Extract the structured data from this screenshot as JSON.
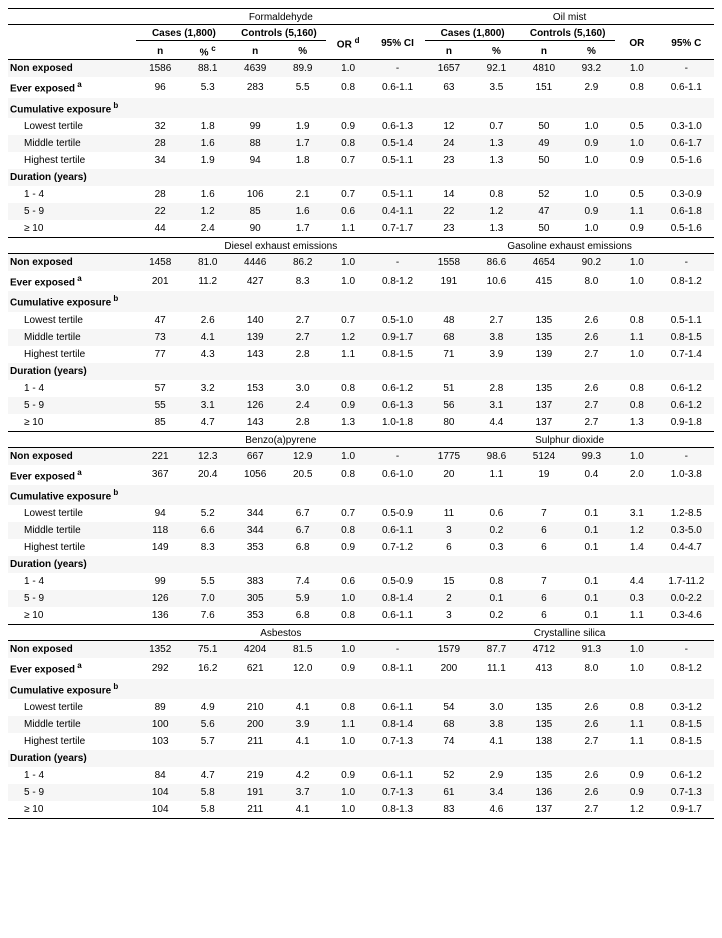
{
  "cases_label": "Cases (1,800)",
  "controls_label": "Controls (5,160)",
  "or_label": "OR",
  "or_d_label": "OR",
  "or_d_sup": "d",
  "ci_label": "95% CI",
  "ci_label_right": "95% C",
  "n_label": "n",
  "pct_label": "%",
  "pct_c_sup": "c",
  "row_labels": {
    "non_exposed": "Non exposed",
    "ever_exposed": "Ever exposed",
    "ever_exposed_sup": "a",
    "cum_exp": "Cumulative exposure",
    "cum_exp_sup": "b",
    "lowest": "Lowest tertile",
    "middle": "Middle tertile",
    "highest": "Highest tertile",
    "duration": "Duration (years)",
    "d1": "1 - 4",
    "d5": "5 - 9",
    "d10": "≥ 10"
  },
  "sections": [
    {
      "left_title": "Formaldehyde",
      "right_title": "Oil mist",
      "rows": {
        "non_exposed": {
          "l": {
            "cn": "1586",
            "cp": "88.1",
            "kn": "4639",
            "kp": "89.9",
            "or": "1.0",
            "ci": "-"
          },
          "r": {
            "cn": "1657",
            "cp": "92.1",
            "kn": "4810",
            "kp": "93.2",
            "or": "1.0",
            "ci": "-"
          }
        },
        "ever_exposed": {
          "l": {
            "cn": "96",
            "cp": "5.3",
            "kn": "283",
            "kp": "5.5",
            "or": "0.8",
            "ci": "0.6-1.1"
          },
          "r": {
            "cn": "63",
            "cp": "3.5",
            "kn": "151",
            "kp": "2.9",
            "or": "0.8",
            "ci": "0.6-1.1"
          }
        },
        "lowest": {
          "l": {
            "cn": "32",
            "cp": "1.8",
            "kn": "99",
            "kp": "1.9",
            "or": "0.9",
            "ci": "0.6-1.3"
          },
          "r": {
            "cn": "12",
            "cp": "0.7",
            "kn": "50",
            "kp": "1.0",
            "or": "0.5",
            "ci": "0.3-1.0"
          }
        },
        "middle": {
          "l": {
            "cn": "28",
            "cp": "1.6",
            "kn": "88",
            "kp": "1.7",
            "or": "0.8",
            "ci": "0.5-1.4"
          },
          "r": {
            "cn": "24",
            "cp": "1.3",
            "kn": "49",
            "kp": "0.9",
            "or": "1.0",
            "ci": "0.6-1.7"
          }
        },
        "highest": {
          "l": {
            "cn": "34",
            "cp": "1.9",
            "kn": "94",
            "kp": "1.8",
            "or": "0.7",
            "ci": "0.5-1.1"
          },
          "r": {
            "cn": "23",
            "cp": "1.3",
            "kn": "50",
            "kp": "1.0",
            "or": "0.9",
            "ci": "0.5-1.6"
          }
        },
        "d1": {
          "l": {
            "cn": "28",
            "cp": "1.6",
            "kn": "106",
            "kp": "2.1",
            "or": "0.7",
            "ci": "0.5-1.1"
          },
          "r": {
            "cn": "14",
            "cp": "0.8",
            "kn": "52",
            "kp": "1.0",
            "or": "0.5",
            "ci": "0.3-0.9"
          }
        },
        "d5": {
          "l": {
            "cn": "22",
            "cp": "1.2",
            "kn": "85",
            "kp": "1.6",
            "or": "0.6",
            "ci": "0.4-1.1"
          },
          "r": {
            "cn": "22",
            "cp": "1.2",
            "kn": "47",
            "kp": "0.9",
            "or": "1.1",
            "ci": "0.6-1.8"
          }
        },
        "d10": {
          "l": {
            "cn": "44",
            "cp": "2.4",
            "kn": "90",
            "kp": "1.7",
            "or": "1.1",
            "ci": "0.7-1.7"
          },
          "r": {
            "cn": "23",
            "cp": "1.3",
            "kn": "50",
            "kp": "1.0",
            "or": "0.9",
            "ci": "0.5-1.6"
          }
        }
      }
    },
    {
      "left_title": "Diesel exhaust emissions",
      "right_title": "Gasoline exhaust emissions",
      "rows": {
        "non_exposed": {
          "l": {
            "cn": "1458",
            "cp": "81.0",
            "kn": "4446",
            "kp": "86.2",
            "or": "1.0",
            "ci": "-"
          },
          "r": {
            "cn": "1558",
            "cp": "86.6",
            "kn": "4654",
            "kp": "90.2",
            "or": "1.0",
            "ci": "-"
          }
        },
        "ever_exposed": {
          "l": {
            "cn": "201",
            "cp": "11.2",
            "kn": "427",
            "kp": "8.3",
            "or": "1.0",
            "ci": "0.8-1.2"
          },
          "r": {
            "cn": "191",
            "cp": "10.6",
            "kn": "415",
            "kp": "8.0",
            "or": "1.0",
            "ci": "0.8-1.2"
          }
        },
        "lowest": {
          "l": {
            "cn": "47",
            "cp": "2.6",
            "kn": "140",
            "kp": "2.7",
            "or": "0.7",
            "ci": "0.5-1.0"
          },
          "r": {
            "cn": "48",
            "cp": "2.7",
            "kn": "135",
            "kp": "2.6",
            "or": "0.8",
            "ci": "0.5-1.1"
          }
        },
        "middle": {
          "l": {
            "cn": "73",
            "cp": "4.1",
            "kn": "139",
            "kp": "2.7",
            "or": "1.2",
            "ci": "0.9-1.7"
          },
          "r": {
            "cn": "68",
            "cp": "3.8",
            "kn": "135",
            "kp": "2.6",
            "or": "1.1",
            "ci": "0.8-1.5"
          }
        },
        "highest": {
          "l": {
            "cn": "77",
            "cp": "4.3",
            "kn": "143",
            "kp": "2.8",
            "or": "1.1",
            "ci": "0.8-1.5"
          },
          "r": {
            "cn": "71",
            "cp": "3.9",
            "kn": "139",
            "kp": "2.7",
            "or": "1.0",
            "ci": "0.7-1.4"
          }
        },
        "d1": {
          "l": {
            "cn": "57",
            "cp": "3.2",
            "kn": "153",
            "kp": "3.0",
            "or": "0.8",
            "ci": "0.6-1.2"
          },
          "r": {
            "cn": "51",
            "cp": "2.8",
            "kn": "135",
            "kp": "2.6",
            "or": "0.8",
            "ci": "0.6-1.2"
          }
        },
        "d5": {
          "l": {
            "cn": "55",
            "cp": "3.1",
            "kn": "126",
            "kp": "2.4",
            "or": "0.9",
            "ci": "0.6-1.3"
          },
          "r": {
            "cn": "56",
            "cp": "3.1",
            "kn": "137",
            "kp": "2.7",
            "or": "0.8",
            "ci": "0.6-1.2"
          }
        },
        "d10": {
          "l": {
            "cn": "85",
            "cp": "4.7",
            "kn": "143",
            "kp": "2.8",
            "or": "1.3",
            "ci": "1.0-1.8"
          },
          "r": {
            "cn": "80",
            "cp": "4.4",
            "kn": "137",
            "kp": "2.7",
            "or": "1.3",
            "ci": "0.9-1.8"
          }
        }
      }
    },
    {
      "left_title": "Benzo(a)pyrene",
      "right_title": "Sulphur dioxide",
      "rows": {
        "non_exposed": {
          "l": {
            "cn": "221",
            "cp": "12.3",
            "kn": "667",
            "kp": "12.9",
            "or": "1.0",
            "ci": "-"
          },
          "r": {
            "cn": "1775",
            "cp": "98.6",
            "kn": "5124",
            "kp": "99.3",
            "or": "1.0",
            "ci": "-"
          }
        },
        "ever_exposed": {
          "l": {
            "cn": "367",
            "cp": "20.4",
            "kn": "1056",
            "kp": "20.5",
            "or": "0.8",
            "ci": "0.6-1.0"
          },
          "r": {
            "cn": "20",
            "cp": "1.1",
            "kn": "19",
            "kp": "0.4",
            "or": "2.0",
            "ci": "1.0-3.8"
          }
        },
        "lowest": {
          "l": {
            "cn": "94",
            "cp": "5.2",
            "kn": "344",
            "kp": "6.7",
            "or": "0.7",
            "ci": "0.5-0.9"
          },
          "r": {
            "cn": "11",
            "cp": "0.6",
            "kn": "7",
            "kp": "0.1",
            "or": "3.1",
            "ci": "1.2-8.5"
          }
        },
        "middle": {
          "l": {
            "cn": "118",
            "cp": "6.6",
            "kn": "344",
            "kp": "6.7",
            "or": "0.8",
            "ci": "0.6-1.1"
          },
          "r": {
            "cn": "3",
            "cp": "0.2",
            "kn": "6",
            "kp": "0.1",
            "or": "1.2",
            "ci": "0.3-5.0"
          }
        },
        "highest": {
          "l": {
            "cn": "149",
            "cp": "8.3",
            "kn": "353",
            "kp": "6.8",
            "or": "0.9",
            "ci": "0.7-1.2"
          },
          "r": {
            "cn": "6",
            "cp": "0.3",
            "kn": "6",
            "kp": "0.1",
            "or": "1.4",
            "ci": "0.4-4.7"
          }
        },
        "d1": {
          "l": {
            "cn": "99",
            "cp": "5.5",
            "kn": "383",
            "kp": "7.4",
            "or": "0.6",
            "ci": "0.5-0.9"
          },
          "r": {
            "cn": "15",
            "cp": "0.8",
            "kn": "7",
            "kp": "0.1",
            "or": "4.4",
            "ci": "1.7-11.2"
          }
        },
        "d5": {
          "l": {
            "cn": "126",
            "cp": "7.0",
            "kn": "305",
            "kp": "5.9",
            "or": "1.0",
            "ci": "0.8-1.4"
          },
          "r": {
            "cn": "2",
            "cp": "0.1",
            "kn": "6",
            "kp": "0.1",
            "or": "0.3",
            "ci": "0.0-2.2"
          }
        },
        "d10": {
          "l": {
            "cn": "136",
            "cp": "7.6",
            "kn": "353",
            "kp": "6.8",
            "or": "0.8",
            "ci": "0.6-1.1"
          },
          "r": {
            "cn": "3",
            "cp": "0.2",
            "kn": "6",
            "kp": "0.1",
            "or": "1.1",
            "ci": "0.3-4.6"
          }
        }
      }
    },
    {
      "left_title": "Asbestos",
      "right_title": "Crystalline silica",
      "rows": {
        "non_exposed": {
          "l": {
            "cn": "1352",
            "cp": "75.1",
            "kn": "4204",
            "kp": "81.5",
            "or": "1.0",
            "ci": "-"
          },
          "r": {
            "cn": "1579",
            "cp": "87.7",
            "kn": "4712",
            "kp": "91.3",
            "or": "1.0",
            "ci": "-"
          }
        },
        "ever_exposed": {
          "l": {
            "cn": "292",
            "cp": "16.2",
            "kn": "621",
            "kp": "12.0",
            "or": "0.9",
            "ci": "0.8-1.1"
          },
          "r": {
            "cn": "200",
            "cp": "11.1",
            "kn": "413",
            "kp": "8.0",
            "or": "1.0",
            "ci": "0.8-1.2"
          }
        },
        "lowest": {
          "l": {
            "cn": "89",
            "cp": "4.9",
            "kn": "210",
            "kp": "4.1",
            "or": "0.8",
            "ci": "0.6-1.1"
          },
          "r": {
            "cn": "54",
            "cp": "3.0",
            "kn": "135",
            "kp": "2.6",
            "or": "0.8",
            "ci": "0.3-1.2"
          }
        },
        "middle": {
          "l": {
            "cn": "100",
            "cp": "5.6",
            "kn": "200",
            "kp": "3.9",
            "or": "1.1",
            "ci": "0.8-1.4"
          },
          "r": {
            "cn": "68",
            "cp": "3.8",
            "kn": "135",
            "kp": "2.6",
            "or": "1.1",
            "ci": "0.8-1.5"
          }
        },
        "highest": {
          "l": {
            "cn": "103",
            "cp": "5.7",
            "kn": "211",
            "kp": "4.1",
            "or": "1.0",
            "ci": "0.7-1.3"
          },
          "r": {
            "cn": "74",
            "cp": "4.1",
            "kn": "138",
            "kp": "2.7",
            "or": "1.1",
            "ci": "0.8-1.5"
          }
        },
        "d1": {
          "l": {
            "cn": "84",
            "cp": "4.7",
            "kn": "219",
            "kp": "4.2",
            "or": "0.9",
            "ci": "0.6-1.1"
          },
          "r": {
            "cn": "52",
            "cp": "2.9",
            "kn": "135",
            "kp": "2.6",
            "or": "0.9",
            "ci": "0.6-1.2"
          }
        },
        "d5": {
          "l": {
            "cn": "104",
            "cp": "5.8",
            "kn": "191",
            "kp": "3.7",
            "or": "1.0",
            "ci": "0.7-1.3"
          },
          "r": {
            "cn": "61",
            "cp": "3.4",
            "kn": "136",
            "kp": "2.6",
            "or": "0.9",
            "ci": "0.7-1.3"
          }
        },
        "d10": {
          "l": {
            "cn": "104",
            "cp": "5.8",
            "kn": "211",
            "kp": "4.1",
            "or": "1.0",
            "ci": "0.8-1.3"
          },
          "r": {
            "cn": "83",
            "cp": "4.6",
            "kn": "137",
            "kp": "2.7",
            "or": "1.2",
            "ci": "0.9-1.7"
          }
        }
      }
    }
  ]
}
